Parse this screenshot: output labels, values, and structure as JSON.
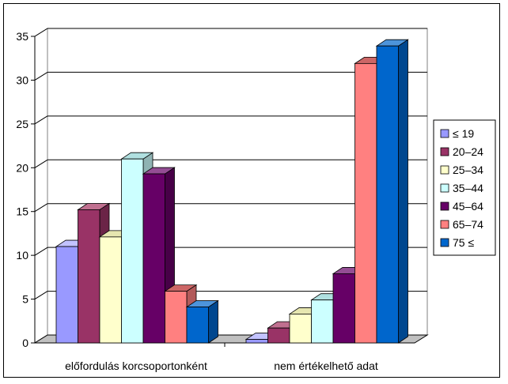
{
  "chart_data": {
    "type": "bar",
    "categories": [
      "előfordulás korcsoportonként",
      "nem értékelhető adat"
    ],
    "series": [
      {
        "name": "≤ 19",
        "values": [
          11,
          0.4
        ],
        "color": "#9999ff",
        "top": "#c2c2ff",
        "side": "#6b6bb3"
      },
      {
        "name": "20–24",
        "values": [
          15.2,
          1.7
        ],
        "color": "#993366",
        "top": "#c07090",
        "side": "#6b2447"
      },
      {
        "name": "25–34",
        "values": [
          12.1,
          3.3
        ],
        "color": "#ffffcc",
        "top": "#e6e6b0",
        "side": "#b3b38f"
      },
      {
        "name": "35–44",
        "values": [
          21,
          4.9
        ],
        "color": "#ccffff",
        "top": "#b0e0e0",
        "side": "#8fb3b3"
      },
      {
        "name": "45–64",
        "values": [
          19.3,
          7.9
        ],
        "color": "#660066",
        "top": "#944d94",
        "side": "#470047"
      },
      {
        "name": "65–74",
        "values": [
          5.9,
          31.9
        ],
        "color": "#ff8080",
        "top": "#cc6666",
        "side": "#b35a5a"
      },
      {
        "name": "75 ≤",
        "values": [
          4.1,
          33.9
        ],
        "color": "#0066cc",
        "top": "#4d94db",
        "side": "#00478f"
      }
    ],
    "ylim": [
      0,
      35
    ],
    "yticks": [
      0,
      5,
      10,
      15,
      20,
      25,
      30,
      35
    ],
    "grid": true,
    "legend": "right",
    "title": "",
    "xlabel": "",
    "ylabel": ""
  }
}
